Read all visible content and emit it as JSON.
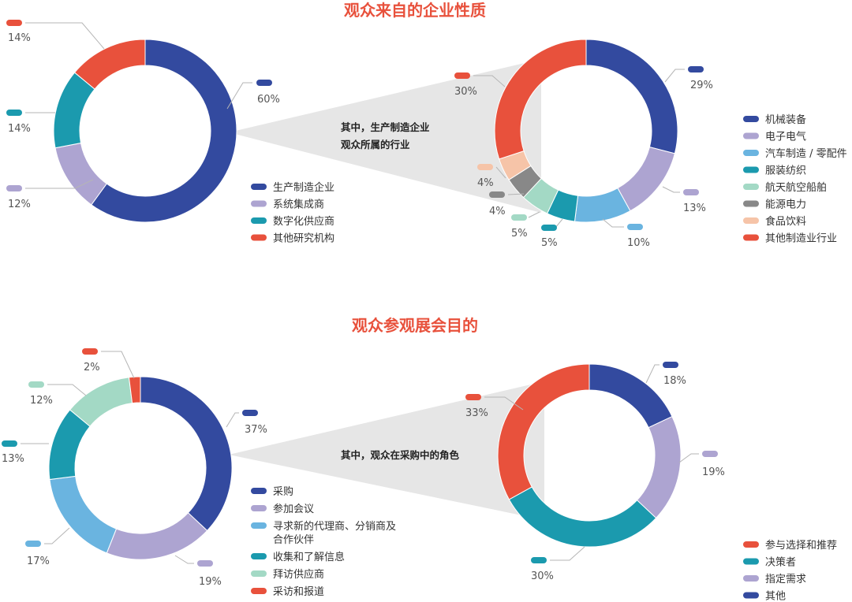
{
  "sections": [
    {
      "title": "观众来自的企业性质",
      "callout": [
        "其中，生产制造企业",
        "观众所属的行业"
      ]
    },
    {
      "title": "观众参观展会目的",
      "callout": [
        "其中，观众在采购中的角色"
      ]
    }
  ],
  "chart_data": [
    {
      "type": "pie",
      "title": "观众来自的企业性质",
      "categories": [
        "生产制造企业",
        "系统集成商",
        "数字化供应商",
        "其他研究机构"
      ],
      "values": [
        60,
        12,
        14,
        14
      ],
      "labels": [
        "60%",
        "12%",
        "14%",
        "14%"
      ],
      "colors": [
        "#334a9f",
        "#ada4d1",
        "#1b9aae",
        "#e8513c"
      ],
      "legend_position": "bottom-right"
    },
    {
      "type": "pie",
      "title": "",
      "categories": [
        "机械装备",
        "电子电气",
        "汽车制造 / 零配件",
        "服装纺织",
        "航天航空船舶",
        "能源电力",
        "食品饮料",
        "其他制造业行业"
      ],
      "values": [
        29,
        13,
        10,
        5,
        5,
        4,
        4,
        30
      ],
      "labels": [
        "29%",
        "13%",
        "10%",
        "5%",
        "5%",
        "4%",
        "4%",
        "30%"
      ],
      "colors": [
        "#334a9f",
        "#ada4d1",
        "#6ab4e0",
        "#1b9aae",
        "#a3d9c5",
        "#888888",
        "#f6c4a8",
        "#e8513c"
      ],
      "legend_position": "right"
    },
    {
      "type": "pie",
      "title": "观众参观展会目的",
      "categories": [
        "采购",
        "参加会议",
        "寻求新的代理商、分销商及合作伙伴",
        "收集和了解信息",
        "拜访供应商",
        "采访和报道"
      ],
      "values": [
        37,
        19,
        17,
        13,
        12,
        2
      ],
      "labels": [
        "37%",
        "19%",
        "17%",
        "13%",
        "12%",
        "2%"
      ],
      "colors": [
        "#334a9f",
        "#ada4d1",
        "#6ab4e0",
        "#1b9aae",
        "#a3d9c5",
        "#e8513c"
      ],
      "legend_position": "bottom-right"
    },
    {
      "type": "pie",
      "title": "",
      "categories": [
        "其他",
        "指定需求",
        "决策者",
        "参与选择和推荐"
      ],
      "values": [
        18,
        19,
        30,
        33
      ],
      "labels": [
        "18%",
        "19%",
        "30%",
        "33%"
      ],
      "colors": [
        "#334a9f",
        "#ada4d1",
        "#1b9aae",
        "#e8513c"
      ],
      "legend_order": [
        3,
        2,
        1,
        0
      ],
      "legend_position": "bottom-right"
    }
  ]
}
